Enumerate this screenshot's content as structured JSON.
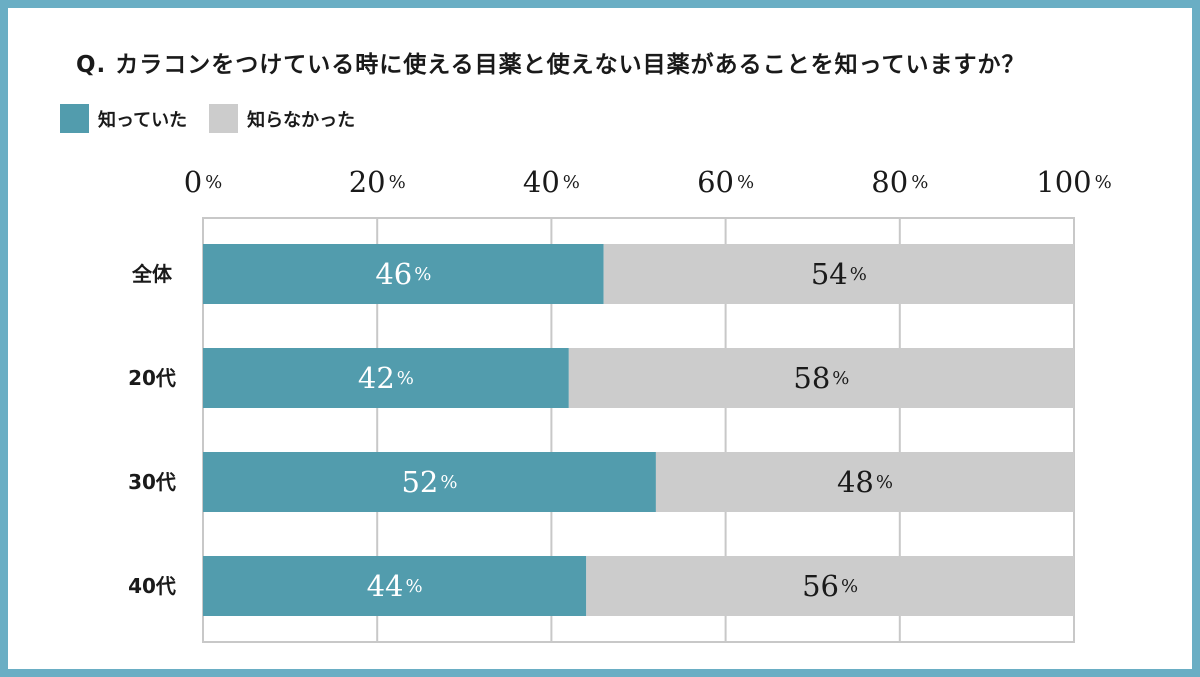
{
  "chart_data": {
    "type": "bar",
    "orientation": "horizontal",
    "stacked": true,
    "title": "Q. カラコンをつけている時に使える目薬と使えない目薬があることを知っていますか？",
    "categories": [
      "全体",
      "20代",
      "30代",
      "40代"
    ],
    "series": [
      {
        "name": "知っていた",
        "values": [
          46,
          42,
          52,
          44
        ],
        "color": "#529cad"
      },
      {
        "name": "知らなかった",
        "values": [
          54,
          58,
          48,
          56
        ],
        "color": "#cccccc"
      }
    ],
    "x_ticks": [
      0,
      20,
      40,
      60,
      80,
      100
    ],
    "unit": "%",
    "xlim": [
      0,
      100
    ],
    "grid": true,
    "legend_position": "top-left"
  }
}
